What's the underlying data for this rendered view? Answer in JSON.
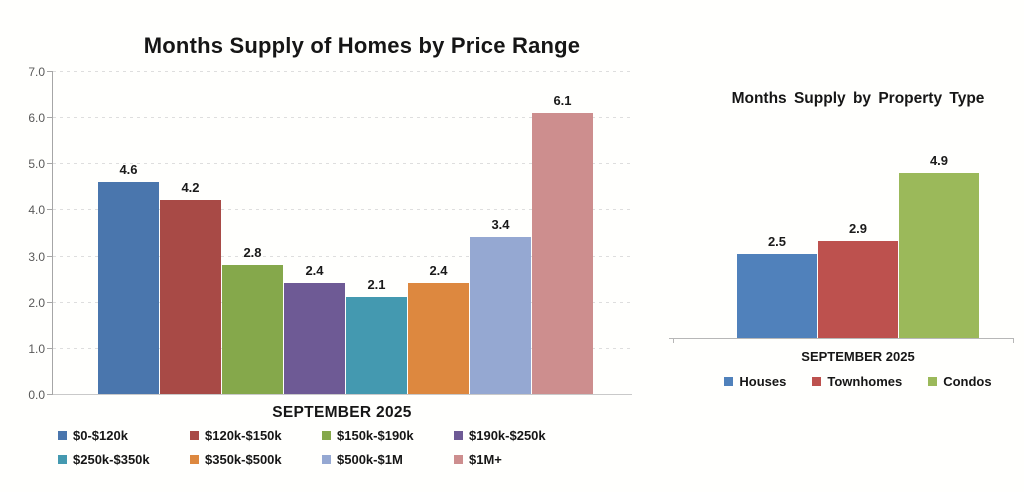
{
  "chart_data": [
    {
      "type": "bar",
      "title": "Months Supply of Homes by Price Range",
      "xlabel": "SEPTEMBER 2025",
      "ylabel": "",
      "ylim": [
        0.0,
        7.0
      ],
      "ytick_labels": [
        "0.0",
        "1.0",
        "2.0",
        "3.0",
        "4.0",
        "5.0",
        "6.0",
        "7.0"
      ],
      "grid": true,
      "legend_position": "bottom",
      "categories": [
        "$0-$120k",
        "$120k-$150k",
        "$150k-$190k",
        "$190k-$250k",
        "$250k-$350k",
        "$350k-$500k",
        "$500k-$1M",
        "$1M+"
      ],
      "values": [
        4.6,
        4.2,
        2.8,
        2.4,
        2.1,
        2.4,
        3.4,
        6.1
      ],
      "data_labels": [
        "4.6",
        "4.2",
        "2.8",
        "2.4",
        "2.1",
        "2.4",
        "3.4",
        "6.1"
      ],
      "colors": [
        "#4a76ad",
        "#a84a46",
        "#85a84b",
        "#6e5a95",
        "#4499b0",
        "#dd883f",
        "#95a8d2",
        "#cd8e8e"
      ]
    },
    {
      "type": "bar",
      "title": "Months Supply by Property Type",
      "xlabel": "SEPTEMBER 2025",
      "ylabel": "",
      "ylim": [
        0.0,
        5.5
      ],
      "grid": false,
      "legend_position": "bottom",
      "categories": [
        "Houses",
        "Townhomes",
        "Condos"
      ],
      "values": [
        2.5,
        2.9,
        4.9
      ],
      "data_labels": [
        "2.5",
        "2.9",
        "4.9"
      ],
      "colors": [
        "#5081bb",
        "#bd514e",
        "#9bb95a"
      ]
    }
  ]
}
